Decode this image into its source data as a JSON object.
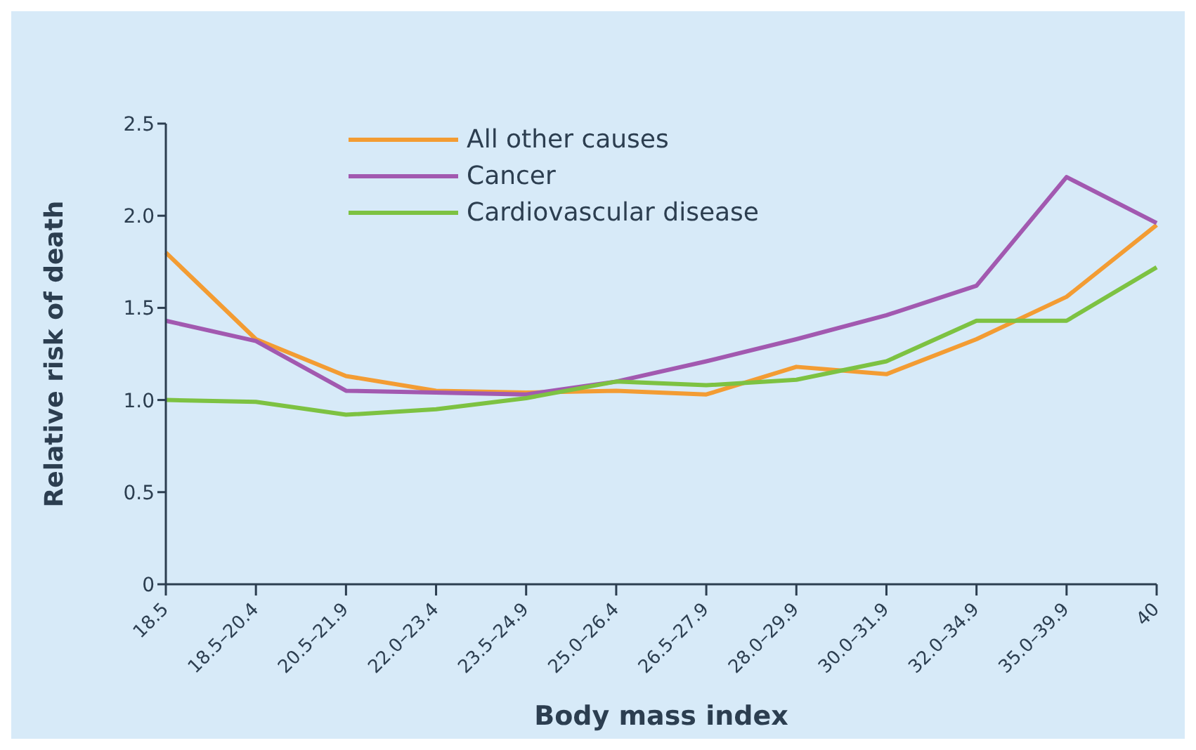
{
  "chart_data": {
    "type": "line",
    "xlabel": "Body mass index",
    "ylabel": "Relative risk of death",
    "categories": [
      "18.5",
      "18.5–20.4",
      "20.5–21.9",
      "22.0–23.4",
      "23.5–24.9",
      "25.0–26.4",
      "26.5–27.9",
      "28.0–29.9",
      "30.0–31.9",
      "32.0–34.9",
      "35.0–39.9",
      "40"
    ],
    "series": [
      {
        "name": "All other causes",
        "color": "#f39c33",
        "values": [
          1.8,
          1.33,
          1.13,
          1.05,
          1.04,
          1.05,
          1.03,
          1.18,
          1.14,
          1.33,
          1.56,
          1.95
        ]
      },
      {
        "name": "Cancer",
        "color": "#a259b0",
        "values": [
          1.43,
          1.32,
          1.05,
          1.04,
          1.03,
          1.1,
          1.21,
          1.33,
          1.46,
          1.62,
          2.21,
          1.96
        ]
      },
      {
        "name": "Cardiovascular disease",
        "color": "#7dc242",
        "values": [
          1.0,
          0.99,
          0.92,
          0.95,
          1.01,
          1.1,
          1.08,
          1.11,
          1.21,
          1.43,
          1.43,
          1.72
        ]
      }
    ],
    "ylim": [
      0,
      2.5
    ],
    "yticks": [
      0,
      {
        "value": 0.5,
        "label": "0.5"
      },
      {
        "value": 1,
        "label": "1.0"
      },
      {
        "value": 1.5,
        "label": "1.5"
      },
      {
        "value": 2,
        "label": "2.0"
      },
      {
        "value": 2.5,
        "label": "2.5"
      }
    ],
    "grid": false,
    "legend": "top left",
    "marker": "none",
    "line_style": "solid"
  }
}
